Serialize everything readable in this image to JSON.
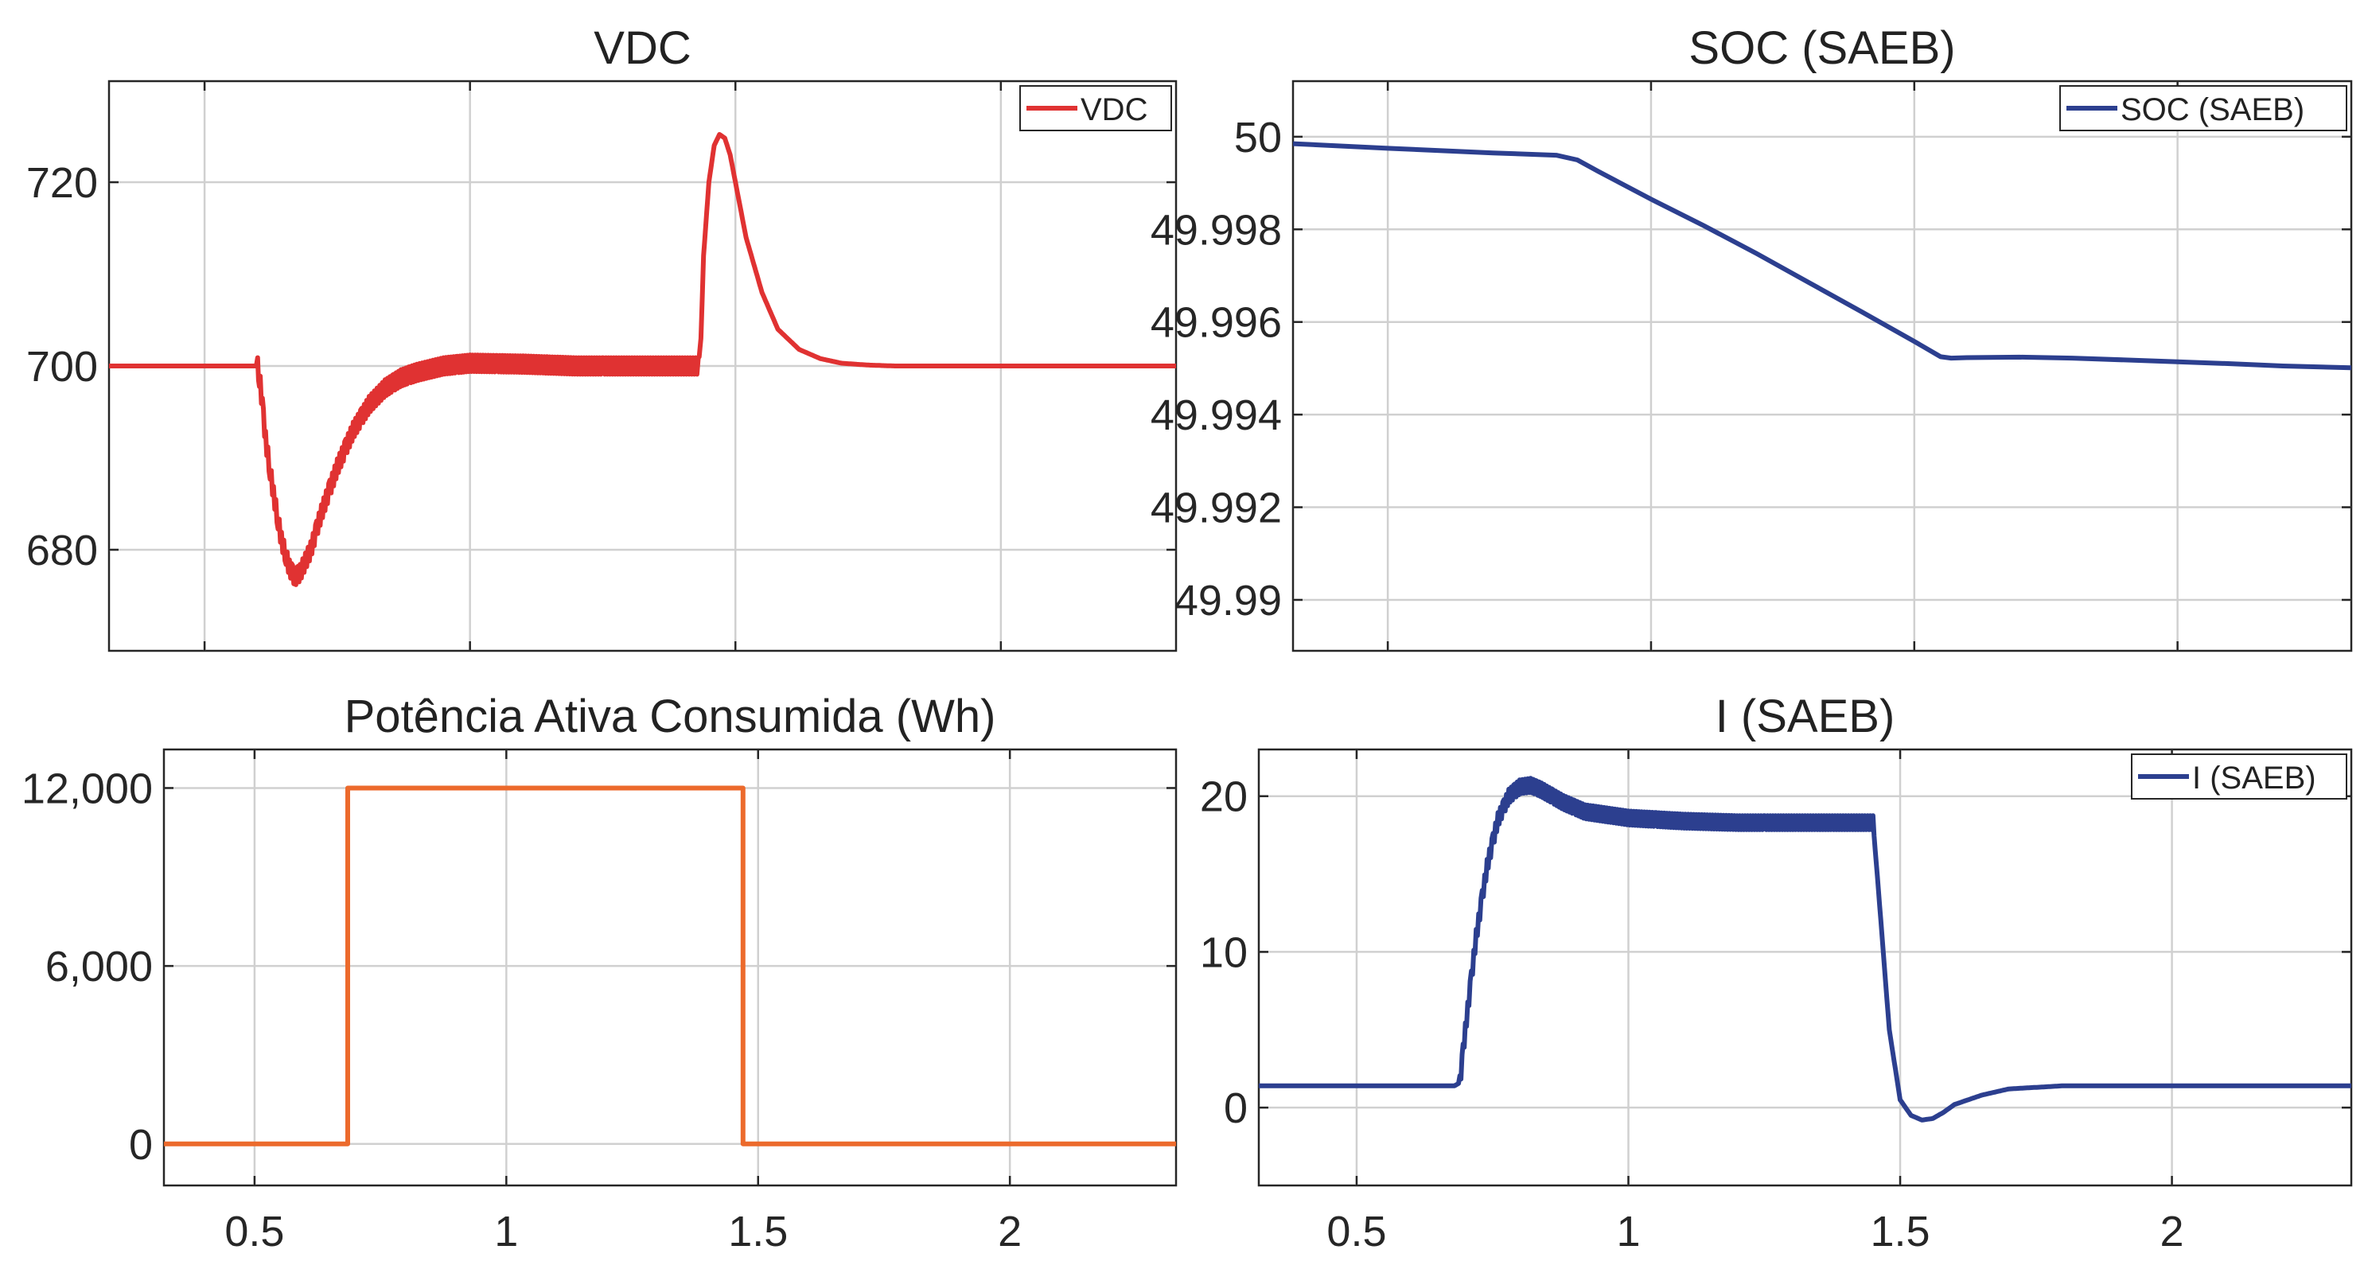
{
  "chart_data": [
    {
      "id": "vdc",
      "type": "line",
      "title": "VDC",
      "xlim": [
        0.32,
        2.33
      ],
      "ylim": [
        669,
        731
      ],
      "xticks": [
        0.5,
        1,
        1.5,
        2
      ],
      "xtick_labels": [],
      "yticks": [
        680,
        700,
        720
      ],
      "ytick_labels": [
        "680",
        "700",
        "720"
      ],
      "grid": true,
      "legend": {
        "position": "top-right",
        "entries": [
          "VDC"
        ]
      },
      "series": [
        {
          "name": "VDC",
          "color": "#e03232",
          "ripple": 0.9,
          "ripple_range": [
            0.6,
            1.43
          ],
          "x": [
            0.32,
            0.6,
            0.605,
            0.615,
            0.63,
            0.645,
            0.66,
            0.67,
            0.68,
            0.7,
            0.72,
            0.75,
            0.78,
            0.81,
            0.84,
            0.87,
            0.9,
            0.95,
            1.0,
            1.1,
            1.2,
            1.3,
            1.43,
            1.435,
            1.44,
            1.45,
            1.46,
            1.47,
            1.48,
            1.49,
            1.5,
            1.52,
            1.55,
            1.58,
            1.62,
            1.66,
            1.7,
            1.75,
            1.8,
            1.9,
            2.0,
            2.33
          ],
          "values": [
            700,
            700,
            698,
            692,
            686,
            681,
            678,
            677,
            677.5,
            680,
            684,
            689,
            693,
            695.8,
            697.6,
            698.7,
            699.3,
            700,
            700.3,
            700.2,
            700,
            700,
            700,
            703,
            712,
            720,
            724,
            725.2,
            724.8,
            723,
            720,
            714,
            708,
            704,
            701.8,
            700.8,
            700.3,
            700.1,
            700,
            700,
            700,
            700
          ]
        }
      ]
    },
    {
      "id": "soc",
      "type": "line",
      "title": "SOC (SAEB)",
      "xlim": [
        0.32,
        2.33
      ],
      "ylim": [
        49.9889,
        50.0012
      ],
      "xticks": [
        0.5,
        1,
        1.5,
        2
      ],
      "xtick_labels": [],
      "yticks": [
        49.99,
        49.992,
        49.994,
        49.996,
        49.998,
        50
      ],
      "ytick_labels": [
        "49.99",
        "49.992",
        "49.994",
        "49.996",
        "49.998",
        "50"
      ],
      "grid": true,
      "legend": {
        "position": "top-right",
        "entries": [
          "SOC (SAEB)"
        ]
      },
      "series": [
        {
          "name": "SOC (SAEB)",
          "color": "#2c3f8f",
          "ripple": 0,
          "x": [
            0.32,
            0.5,
            0.7,
            0.82,
            0.86,
            0.9,
            1.0,
            1.1,
            1.2,
            1.3,
            1.4,
            1.5,
            1.55,
            1.57,
            1.6,
            1.7,
            1.8,
            1.9,
            2.0,
            2.1,
            2.2,
            2.33
          ],
          "values": [
            49.99985,
            49.99975,
            49.99965,
            49.9996,
            49.9995,
            49.99925,
            49.99865,
            49.99808,
            49.99748,
            49.99685,
            49.99622,
            49.99558,
            49.99525,
            49.99522,
            49.99523,
            49.99524,
            49.99522,
            49.99518,
            49.99514,
            49.9951,
            49.99505,
            49.99501
          ]
        }
      ]
    },
    {
      "id": "potencia",
      "type": "line",
      "title": "Potência Ativa Consumida (Wh)",
      "xlim": [
        0.32,
        2.33
      ],
      "ylim": [
        -1400,
        13300
      ],
      "xticks": [
        0.5,
        1,
        1.5,
        2
      ],
      "xtick_labels": [
        "0.5",
        "1",
        "1.5",
        "2"
      ],
      "yticks": [
        0,
        6000,
        12000
      ],
      "ytick_labels": [
        "0",
        "6,000",
        "12,000"
      ],
      "grid": true,
      "legend": null,
      "series": [
        {
          "name": "Potência Ativa Consumida",
          "color": "#ec6a2c",
          "ripple": 0,
          "x": [
            0.32,
            0.685,
            0.685,
            1.47,
            1.47,
            2.33
          ],
          "values": [
            0,
            0,
            12000,
            12000,
            0,
            0
          ]
        }
      ]
    },
    {
      "id": "i_saeb",
      "type": "line",
      "title": "I (SAEB)",
      "xlim": [
        0.32,
        2.33
      ],
      "ylim": [
        -5,
        23
      ],
      "xticks": [
        0.5,
        1,
        1.5,
        2
      ],
      "xtick_labels": [
        "0.5",
        "1",
        "1.5",
        "2"
      ],
      "yticks": [
        0,
        10,
        20
      ],
      "ytick_labels": [
        "0",
        "10",
        "20"
      ],
      "grid": true,
      "legend": {
        "position": "top-right",
        "entries": [
          "I (SAEB)"
        ]
      },
      "series": [
        {
          "name": "I (SAEB)",
          "color": "#2c3f8f",
          "ripple": 0.45,
          "ripple_range": [
            0.69,
            1.45
          ],
          "x": [
            0.32,
            0.68,
            0.69,
            0.7,
            0.72,
            0.74,
            0.76,
            0.78,
            0.8,
            0.82,
            0.84,
            0.88,
            0.92,
            1.0,
            1.1,
            1.2,
            1.3,
            1.45,
            1.46,
            1.48,
            1.5,
            1.52,
            1.54,
            1.56,
            1.58,
            1.6,
            1.65,
            1.7,
            1.8,
            2.0,
            2.33
          ],
          "values": [
            1.4,
            1.4,
            1.6,
            5,
            11,
            15.5,
            18.5,
            20,
            20.6,
            20.7,
            20.4,
            19.6,
            19,
            18.6,
            18.4,
            18.3,
            18.3,
            18.3,
            14,
            5,
            0.5,
            -0.5,
            -0.8,
            -0.7,
            -0.3,
            0.2,
            0.8,
            1.2,
            1.4,
            1.4,
            1.4
          ]
        }
      ]
    }
  ]
}
